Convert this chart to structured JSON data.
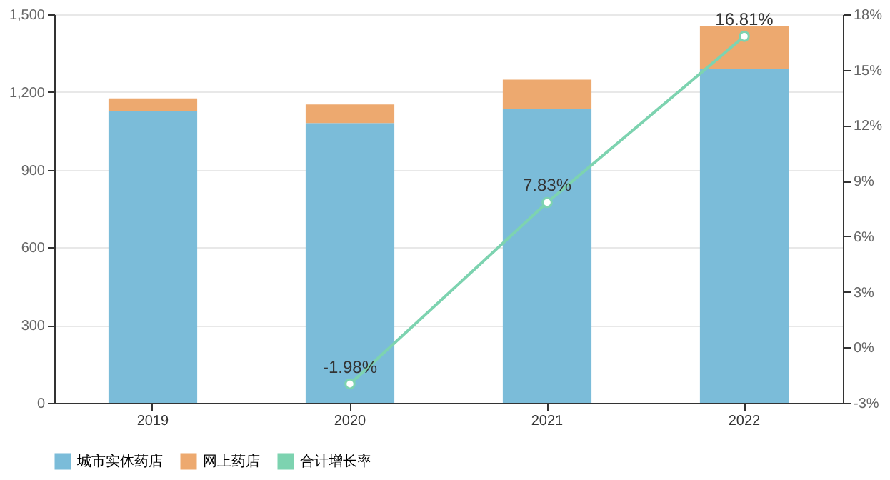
{
  "chart_data": {
    "type": "bar",
    "stacked": true,
    "categories": [
      "2019",
      "2020",
      "2021",
      "2022"
    ],
    "series": [
      {
        "name": "城市实体药店",
        "color": "#7bbcd9",
        "values": [
          1125,
          1080,
          1133,
          1290
        ]
      },
      {
        "name": "网上药店",
        "color": "#eda96f",
        "values": [
          50,
          72,
          115,
          165
        ]
      },
      {
        "name": "合计增长率",
        "color": "#7dd3b0",
        "type": "line",
        "axis": "y2",
        "marker": "circle",
        "values": [
          null,
          -1.98,
          7.83,
          16.81
        ],
        "value_labels": [
          null,
          "-1.98%",
          "7.83%",
          "16.81%"
        ]
      }
    ],
    "ylim": [
      0,
      1500
    ],
    "yticks": [
      0,
      300,
      600,
      900,
      {
        "value": 1200,
        "label": "1,200"
      },
      {
        "value": 1500,
        "label": "1,500"
      }
    ],
    "y2lim": [
      -3,
      18
    ],
    "y2ticks": [
      {
        "value": -3,
        "label": "-3%"
      },
      {
        "value": 0,
        "label": "0%"
      },
      {
        "value": 3,
        "label": "3%"
      },
      {
        "value": 6,
        "label": "6%"
      },
      {
        "value": 9,
        "label": "9%"
      },
      {
        "value": 12,
        "label": "12%"
      },
      {
        "value": 15,
        "label": "15%"
      },
      {
        "value": 18,
        "label": "18%"
      }
    ],
    "grid": "y",
    "legend": "bottom"
  }
}
